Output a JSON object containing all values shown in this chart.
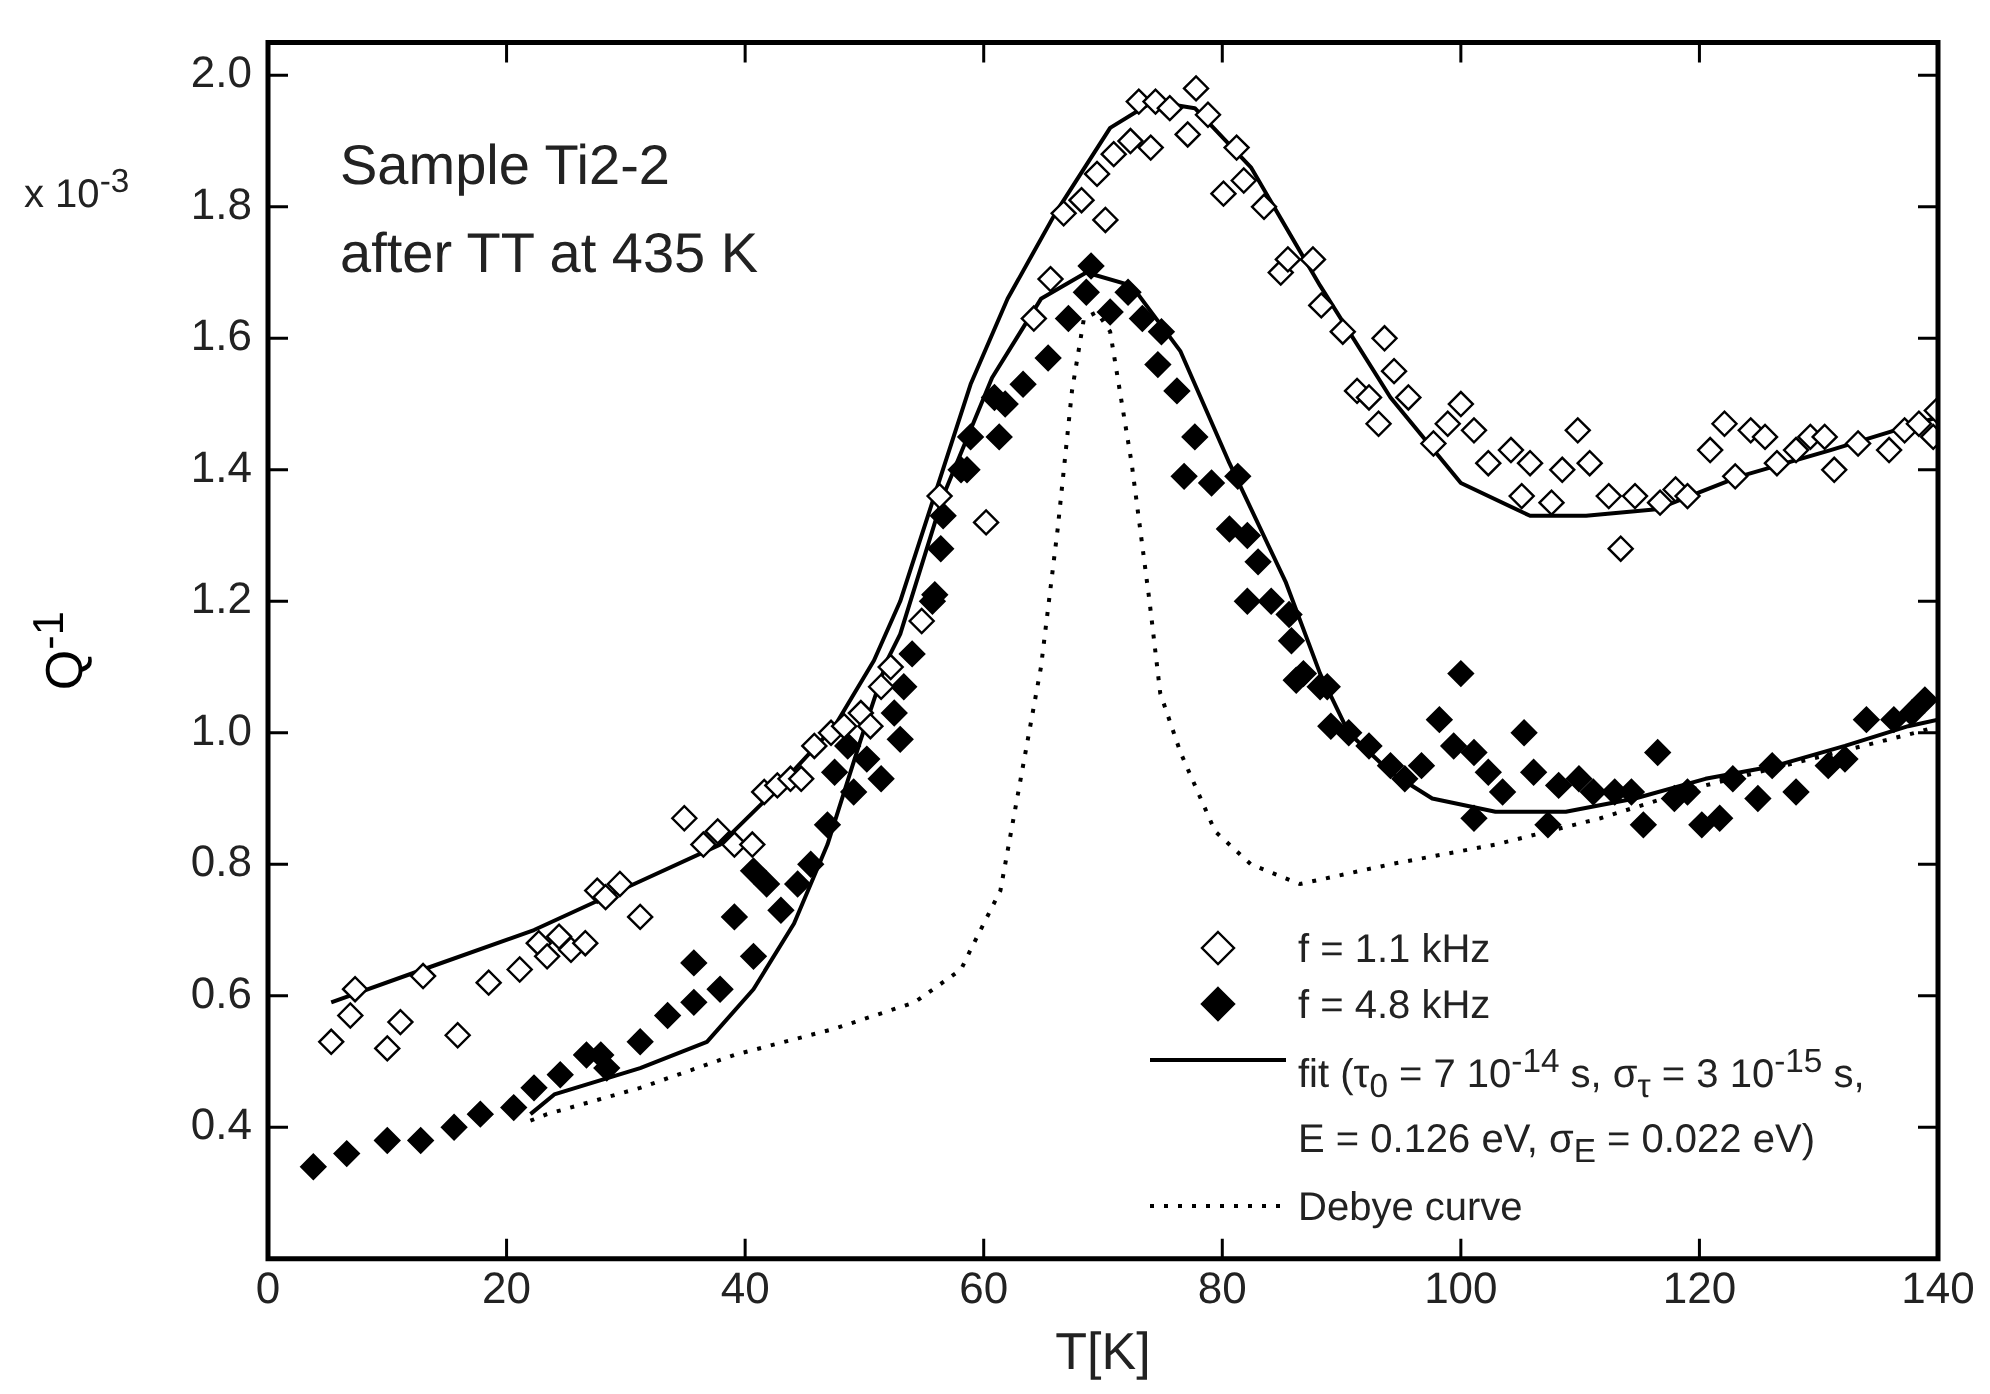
{
  "chart_data": {
    "type": "scatter",
    "xlabel": "T[K]",
    "ylabel": "Q$^{-1}$",
    "xlim": [
      0,
      140
    ],
    "xticks": [
      0,
      20,
      40,
      60,
      80,
      100,
      120,
      140
    ],
    "ylim": [
      0.2,
      2.05
    ],
    "yticks": [
      0.4,
      0.6,
      0.8,
      {
        "value": 1,
        "label": "1.0"
      },
      1.2,
      1.4,
      1.6,
      1.8,
      {
        "value": 2,
        "label": "2.0"
      }
    ],
    "legend": "bottom right",
    "annotations": [
      "x 10$^{-3}$",
      "Sample Ti2-2\nafter TT at 435 K"
    ],
    "series": [
      {
        "name": "f = 1.1 kHz",
        "marker": "diamond",
        "color": "#ffffff",
        "x": [
          5.3,
          6.9,
          7.3,
          10.0,
          11.1,
          13.0,
          15.9,
          18.5,
          21.1,
          22.7,
          23.4,
          24.4,
          25.4,
          26.6,
          27.6,
          28.3,
          29.5,
          31.2,
          34.9,
          36.5,
          37.7,
          39.1,
          40.6,
          41.6,
          42.7,
          43.8,
          44.7,
          45.8,
          47.2,
          48.3,
          49.7,
          50.5,
          51.4,
          52.2,
          54.8,
          56.3,
          60.2,
          64.2,
          65.6,
          66.7,
          68.2,
          69.5,
          70.2,
          70.9,
          72.3,
          73.0,
          74.0,
          74.4,
          75.6,
          77.1,
          77.8,
          78.8,
          80.1,
          81.2,
          81.8,
          83.5,
          84.9,
          85.5,
          87.6,
          88.3,
          90.1,
          91.3,
          92.3,
          93.1,
          93.6,
          94.4,
          95.6,
          97.7,
          98.9,
          100.0,
          101.1,
          102.3,
          104.2,
          105.1,
          105.8,
          107.6,
          108.5,
          109.8,
          110.8,
          112.4,
          113.4,
          114.6,
          116.7,
          118.0,
          119.0,
          120.9,
          122.1,
          123.0,
          124.3,
          125.5,
          126.5,
          128.1,
          129.3,
          130.5,
          131.3,
          133.3,
          135.9,
          137.2,
          138.4,
          139.6,
          139.9
        ],
        "values": [
          0.53,
          0.57,
          0.61,
          0.52,
          0.56,
          0.63,
          0.54,
          0.62,
          0.64,
          0.68,
          0.66,
          0.69,
          0.67,
          0.68,
          0.76,
          0.75,
          0.77,
          0.72,
          0.87,
          0.83,
          0.85,
          0.83,
          0.83,
          0.91,
          0.92,
          0.93,
          0.93,
          0.98,
          1.0,
          1.01,
          1.03,
          1.01,
          1.07,
          1.1,
          1.17,
          1.36,
          1.32,
          1.63,
          1.69,
          1.79,
          1.81,
          1.85,
          1.78,
          1.88,
          1.9,
          1.96,
          1.89,
          1.96,
          1.95,
          1.91,
          1.98,
          1.94,
          1.82,
          1.89,
          1.84,
          1.8,
          1.7,
          1.72,
          1.72,
          1.65,
          1.61,
          1.52,
          1.51,
          1.47,
          1.6,
          1.55,
          1.51,
          1.44,
          1.47,
          1.5,
          1.46,
          1.41,
          1.43,
          1.36,
          1.41,
          1.35,
          1.4,
          1.46,
          1.41,
          1.36,
          1.28,
          1.36,
          1.35,
          1.37,
          1.36,
          1.43,
          1.47,
          1.39,
          1.46,
          1.45,
          1.41,
          1.43,
          1.45,
          1.45,
          1.4,
          1.44,
          1.43,
          1.46,
          1.47,
          1.45,
          1.49
        ]
      },
      {
        "name": "f = 4.8 kHz",
        "marker": "diamond",
        "color": "#000000",
        "x": [
          3.8,
          6.6,
          10.0,
          12.8,
          15.6,
          17.8,
          20.6,
          22.3,
          24.5,
          26.7,
          27.9,
          28.4,
          31.2,
          33.5,
          35.7,
          35.7,
          37.9,
          39.1,
          40.7,
          40.7,
          41.8,
          43.0,
          44.4,
          45.5,
          46.9,
          47.5,
          48.6,
          49.1,
          50.2,
          51.4,
          52.5,
          53.0,
          53.3,
          54.0,
          55.7,
          55.9,
          56.4,
          56.6,
          58.1,
          58.6,
          58.9,
          60.9,
          61.3,
          61.8,
          63.3,
          65.4,
          67.1,
          68.6,
          69.0,
          70.6,
          72.1,
          73.3,
          74.6,
          74.9,
          76.2,
          76.8,
          77.7,
          79.1,
          80.6,
          81.3,
          82.1,
          82.1,
          83.0,
          84.1,
          85.6,
          85.8,
          86.2,
          86.8,
          88.2,
          88.8,
          89.1,
          90.6,
          92.3,
          94.1,
          95.3,
          96.7,
          98.2,
          99.4,
          100.0,
          101.1,
          101.1,
          102.3,
          103.5,
          105.3,
          106.1,
          107.3,
          108.2,
          109.9,
          111.1,
          112.9,
          114.3,
          115.3,
          116.5,
          117.9,
          119.0,
          120.2,
          121.7,
          122.8,
          124.9,
          126.1,
          128.1,
          130.8,
          132.2,
          134.0,
          136.3,
          137.8,
          138.9
        ],
        "values": [
          0.34,
          0.36,
          0.38,
          0.38,
          0.4,
          0.42,
          0.43,
          0.46,
          0.48,
          0.51,
          0.51,
          0.49,
          0.53,
          0.57,
          0.59,
          0.65,
          0.61,
          0.72,
          0.66,
          0.79,
          0.77,
          0.73,
          0.77,
          0.8,
          0.86,
          0.94,
          0.98,
          0.91,
          0.96,
          0.93,
          1.03,
          0.99,
          1.07,
          1.12,
          1.2,
          1.21,
          1.28,
          1.33,
          1.4,
          1.4,
          1.45,
          1.51,
          1.45,
          1.5,
          1.53,
          1.57,
          1.63,
          1.67,
          1.71,
          1.64,
          1.67,
          1.63,
          1.56,
          1.61,
          1.52,
          1.39,
          1.45,
          1.38,
          1.31,
          1.39,
          1.3,
          1.2,
          1.26,
          1.2,
          1.18,
          1.14,
          1.08,
          1.09,
          1.07,
          1.07,
          1.01,
          1.0,
          0.98,
          0.95,
          0.93,
          0.95,
          1.02,
          0.98,
          1.09,
          0.97,
          0.87,
          0.94,
          0.91,
          1.0,
          0.94,
          0.86,
          0.92,
          0.93,
          0.91,
          0.91,
          0.91,
          0.86,
          0.97,
          0.9,
          0.91,
          0.86,
          0.87,
          0.93,
          0.9,
          0.95,
          0.91,
          0.95,
          0.96,
          1.02,
          1.02,
          1.03,
          1.05
        ]
      },
      {
        "name": "fit (τ$_{0}$ = 7 10$^{-14}$ s, σ$_{τ}$ = 3 10$^{-15}$ s, E = 0.126 eV, σ$_{E}$ = 0.022 eV)",
        "type": "line",
        "marker": "none",
        "line_style": "solid",
        "color": "#000000",
        "x": [
          5.3,
          13.0,
          22.3,
          30.7,
          37.9,
          42.4,
          47.5,
          50.8,
          53.0,
          58.9,
          62.0,
          66.0,
          70.6,
          74.2,
          77.7,
          82.4,
          88.2,
          94.1,
          100.0,
          105.8,
          110.5,
          116.4,
          123.4,
          131.0,
          140.0
        ],
        "values": [
          0.59,
          0.64,
          0.7,
          0.77,
          0.83,
          0.91,
          1.01,
          1.11,
          1.2,
          1.53,
          1.66,
          1.79,
          1.92,
          1.96,
          1.95,
          1.86,
          1.68,
          1.51,
          1.38,
          1.33,
          1.33,
          1.34,
          1.39,
          1.43,
          1.48
        ]
      },
      {
        "type": "line",
        "marker": "none",
        "line_style": "solid",
        "color": "#000000",
        "x": [
          22.0,
          24.0,
          31.2,
          36.8,
          40.7,
          44.1,
          46.9,
          49.7,
          51.9,
          53.0,
          56.6,
          60.7,
          64.8,
          68.6,
          72.4,
          76.5,
          80.6,
          85.3,
          88.2,
          90.6,
          94.1,
          97.6,
          102.9,
          108.8,
          114.6,
          120.5,
          126.4,
          132.2,
          137.5,
          140.0
        ],
        "values": [
          0.42,
          0.45,
          0.49,
          0.53,
          0.61,
          0.71,
          0.83,
          0.99,
          1.11,
          1.15,
          1.36,
          1.54,
          1.66,
          1.7,
          1.68,
          1.58,
          1.41,
          1.23,
          1.09,
          1.0,
          0.94,
          0.9,
          0.88,
          0.88,
          0.9,
          0.93,
          0.95,
          0.98,
          1.01,
          1.02
        ]
      },
      {
        "name": "Debye curve",
        "type": "line",
        "marker": "none",
        "line_style": "dotted",
        "color": "#000000",
        "x": [
          22.0,
          23.4,
          31.2,
          39.1,
          47.5,
          54.2,
          58.1,
          58.9,
          61.4,
          61.8,
          64.8,
          66.2,
          67.4,
          68.4,
          69.5,
          70.6,
          72.4,
          73.9,
          74.8,
          76.5,
          79.4,
          82.4,
          86.5,
          94.1,
          102.9,
          111.7,
          120.5,
          129.3,
          138.1,
          140.0
        ],
        "values": [
          0.41,
          0.42,
          0.46,
          0.51,
          0.55,
          0.59,
          0.64,
          0.67,
          0.76,
          0.8,
          1.1,
          1.31,
          1.52,
          1.63,
          1.64,
          1.61,
          1.41,
          1.2,
          1.06,
          0.97,
          0.85,
          0.8,
          0.77,
          0.8,
          0.83,
          0.87,
          0.92,
          0.96,
          1.0,
          1.01
        ]
      }
    ]
  }
}
